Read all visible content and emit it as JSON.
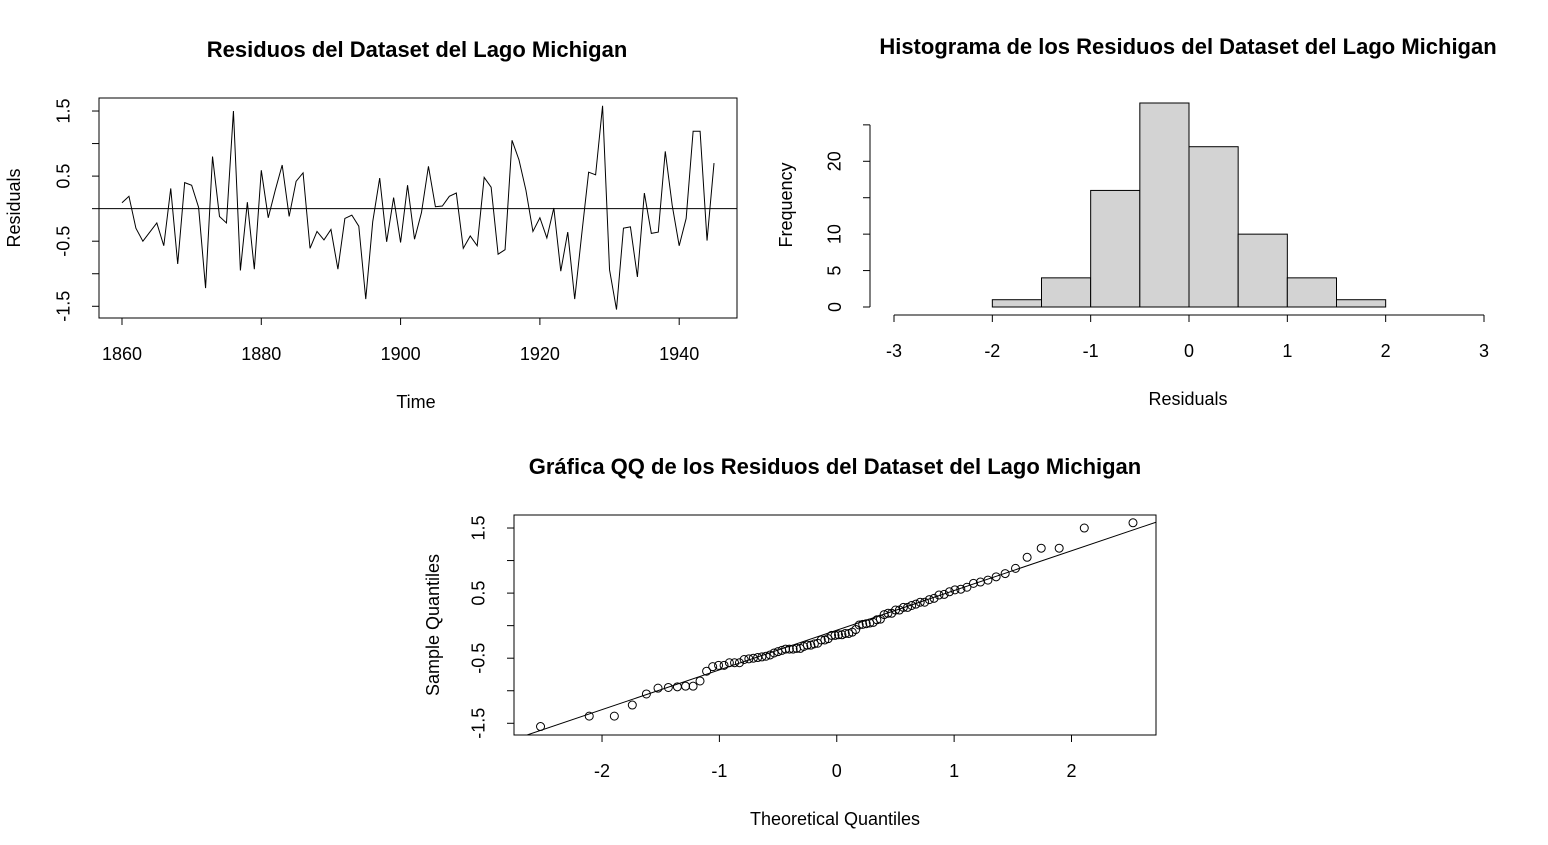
{
  "chart_data": [
    {
      "type": "line",
      "title": "Residuos del Dataset del Lago Michigan",
      "x_label": "Time",
      "y_label": "Residuals",
      "x": [
        1860,
        1861,
        1862,
        1863,
        1864,
        1865,
        1866,
        1867,
        1868,
        1869,
        1870,
        1871,
        1872,
        1873,
        1874,
        1875,
        1876,
        1877,
        1878,
        1879,
        1880,
        1881,
        1882,
        1883,
        1884,
        1885,
        1886,
        1887,
        1888,
        1889,
        1890,
        1891,
        1892,
        1893,
        1894,
        1895,
        1896,
        1897,
        1898,
        1899,
        1900,
        1901,
        1902,
        1903,
        1904,
        1905,
        1906,
        1907,
        1908,
        1909,
        1910,
        1911,
        1912,
        1913,
        1914,
        1915,
        1916,
        1917,
        1918,
        1919,
        1920,
        1921,
        1922,
        1923,
        1924,
        1925,
        1926,
        1927,
        1928,
        1929,
        1930,
        1931,
        1932,
        1933,
        1934,
        1935,
        1936,
        1937,
        1938,
        1939,
        1940,
        1941,
        1942,
        1943,
        1944,
        1945
      ],
      "values": [
        0.09,
        0.19,
        -0.3,
        -0.5,
        -0.36,
        -0.22,
        -0.57,
        0.31,
        -0.85,
        0.4,
        0.36,
        0.02,
        -1.22,
        0.8,
        -0.12,
        -0.22,
        1.5,
        -0.95,
        0.1,
        -0.93,
        0.59,
        -0.14,
        0.28,
        0.67,
        -0.12,
        0.42,
        0.55,
        -0.61,
        -0.35,
        -0.48,
        -0.32,
        -0.93,
        -0.15,
        -0.1,
        -0.27,
        -1.39,
        -0.2,
        0.47,
        -0.51,
        0.17,
        -0.52,
        0.36,
        -0.47,
        -0.06,
        0.65,
        0.03,
        0.04,
        0.19,
        0.24,
        -0.61,
        -0.42,
        -0.57,
        0.48,
        0.33,
        -0.7,
        -0.63,
        1.05,
        0.75,
        0.28,
        -0.35,
        -0.14,
        -0.45,
        0.01,
        -0.96,
        -0.36,
        -1.39,
        -0.4,
        0.56,
        0.52,
        1.58,
        -0.94,
        -1.55,
        -0.3,
        -0.28,
        -1.05,
        0.24,
        -0.38,
        -0.36,
        0.88,
        0.05,
        -0.57,
        -0.15,
        1.19,
        1.19,
        -0.49,
        0.7
      ],
      "color": "#000000",
      "hline": 0,
      "xlim": [
        1856.7,
        1948.3
      ],
      "xticks": [
        1860,
        1880,
        1900,
        1920,
        1940
      ],
      "ylim": [
        -1.68,
        1.7
      ],
      "yticks": [
        -1.5,
        {
          "value": -1,
          "label": null
        },
        -0.5,
        {
          "value": 0,
          "label": null
        },
        0.5,
        {
          "value": 1,
          "label": null
        },
        1.5
      ]
    },
    {
      "type": "histogram",
      "title": "Histograma de los Residuos del Dataset del Lago Michigan",
      "x_label": "Residuals",
      "y_label": "Frequency",
      "bins": [
        -2,
        -1.5,
        -1,
        -0.5,
        0,
        0.5,
        1,
        1.5,
        2
      ],
      "values": [
        1,
        4,
        16,
        28,
        22,
        10,
        4,
        1
      ],
      "color": "#d3d3d3",
      "xlim": [
        -3,
        3
      ],
      "xticks": [
        -3,
        -2,
        -1,
        0,
        1,
        2,
        3
      ],
      "ylim": [
        0,
        28
      ],
      "yticks": [
        0,
        5,
        10,
        {
          "value": 15,
          "label": null
        },
        20,
        {
          "value": 25,
          "label": null
        }
      ]
    },
    {
      "type": "scatter",
      "title": "Gráfica QQ de los Residuos del Dataset del Lago Michigan",
      "x_label": "Theoretical Quantiles",
      "y_label": "Sample Quantiles",
      "x": [
        -2.524,
        -2.109,
        -1.895,
        -1.742,
        -1.622,
        -1.523,
        -1.435,
        -1.358,
        -1.288,
        -1.224,
        -1.165,
        -1.109,
        -1.057,
        -1.007,
        -0.96,
        -0.915,
        -0.871,
        -0.829,
        -0.789,
        -0.749,
        -0.711,
        -0.674,
        -0.638,
        -0.603,
        -0.568,
        -0.534,
        -0.501,
        -0.468,
        -0.436,
        -0.404,
        -0.372,
        -0.342,
        -0.311,
        -0.281,
        -0.251,
        -0.221,
        -0.191,
        -0.162,
        -0.132,
        -0.102,
        -0.073,
        -0.044,
        -0.015,
        0.015,
        0.044,
        0.073,
        0.102,
        0.132,
        0.162,
        0.191,
        0.221,
        0.251,
        0.281,
        0.311,
        0.342,
        0.372,
        0.404,
        0.436,
        0.468,
        0.501,
        0.534,
        0.568,
        0.603,
        0.638,
        0.674,
        0.711,
        0.749,
        0.789,
        0.829,
        0.871,
        0.915,
        0.96,
        1.007,
        1.057,
        1.109,
        1.165,
        1.224,
        1.288,
        1.358,
        1.435,
        1.523,
        1.622,
        1.742,
        1.895,
        2.109,
        2.524
      ],
      "values": [
        -1.55,
        -1.39,
        -1.39,
        -1.22,
        -1.05,
        -0.96,
        -0.95,
        -0.94,
        -0.93,
        -0.93,
        -0.85,
        -0.7,
        -0.63,
        -0.61,
        -0.61,
        -0.57,
        -0.57,
        -0.57,
        -0.52,
        -0.51,
        -0.5,
        -0.49,
        -0.48,
        -0.47,
        -0.45,
        -0.42,
        -0.4,
        -0.38,
        -0.36,
        -0.36,
        -0.36,
        -0.35,
        -0.35,
        -0.32,
        -0.3,
        -0.3,
        -0.28,
        -0.27,
        -0.22,
        -0.22,
        -0.2,
        -0.15,
        -0.15,
        -0.14,
        -0.14,
        -0.12,
        -0.12,
        -0.1,
        -0.06,
        0.01,
        0.02,
        0.03,
        0.04,
        0.05,
        0.09,
        0.1,
        0.17,
        0.19,
        0.19,
        0.24,
        0.24,
        0.28,
        0.28,
        0.31,
        0.33,
        0.36,
        0.36,
        0.4,
        0.42,
        0.47,
        0.48,
        0.52,
        0.55,
        0.56,
        0.59,
        0.65,
        0.67,
        0.7,
        0.75,
        0.8,
        0.88,
        1.05,
        1.19,
        1.19,
        1.5,
        1.58
      ],
      "color": "#000000",
      "qqline": {
        "intercept": -0.07,
        "slope": 0.61
      },
      "xlim": [
        -2.75,
        2.72
      ],
      "xticks": [
        -2,
        -1,
        0,
        1,
        2
      ],
      "ylim": [
        -1.68,
        1.7
      ],
      "yticks": [
        -1.5,
        {
          "value": -1,
          "label": null
        },
        -0.5,
        {
          "value": 0,
          "label": null
        },
        0.5,
        {
          "value": 1,
          "label": null
        },
        1.5
      ]
    }
  ]
}
